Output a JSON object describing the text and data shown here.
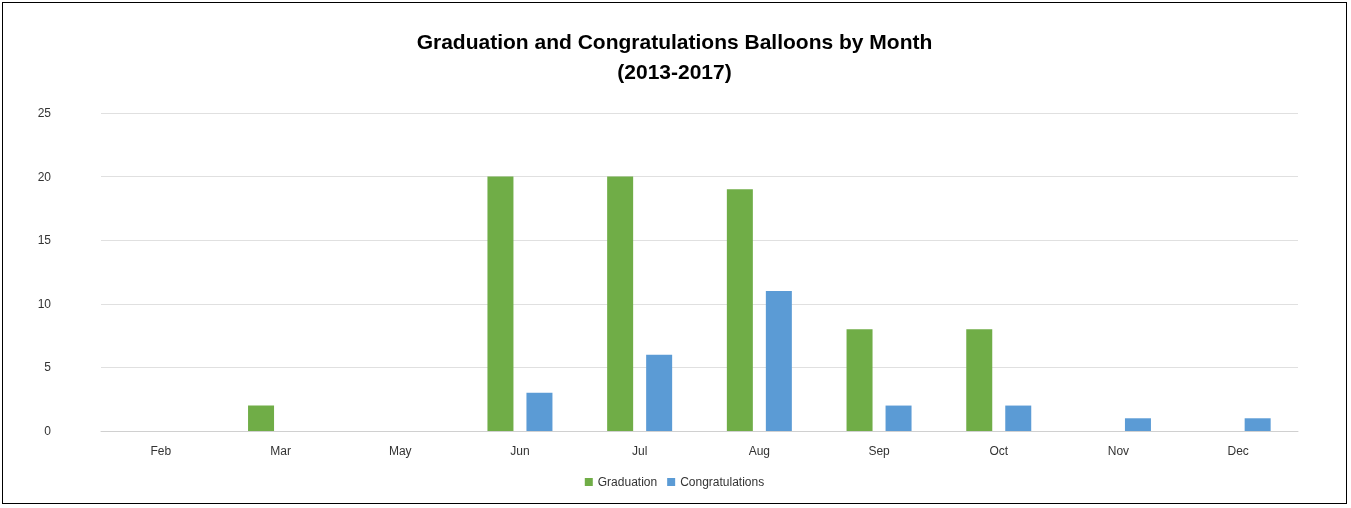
{
  "chart_data": {
    "type": "bar",
    "title": "Graduation and Congratulations Balloons by Month\n(2013-2017)",
    "categories": [
      "Feb",
      "Mar",
      "May",
      "Jun",
      "Jul",
      "Aug",
      "Sep",
      "Oct",
      "Nov",
      "Dec"
    ],
    "series": [
      {
        "name": "Graduation",
        "color": "#70ad47",
        "values": [
          0,
          2,
          0,
          20,
          20,
          19,
          8,
          8,
          0,
          0
        ]
      },
      {
        "name": "Congratulations",
        "color": "#5b9bd5",
        "values": [
          0,
          0,
          0,
          3,
          6,
          11,
          2,
          2,
          1,
          1
        ]
      }
    ],
    "ylim": [
      0,
      25
    ],
    "yticks": [
      0,
      5,
      10,
      15,
      20,
      25
    ],
    "grid": "y",
    "legend": "bottom"
  }
}
